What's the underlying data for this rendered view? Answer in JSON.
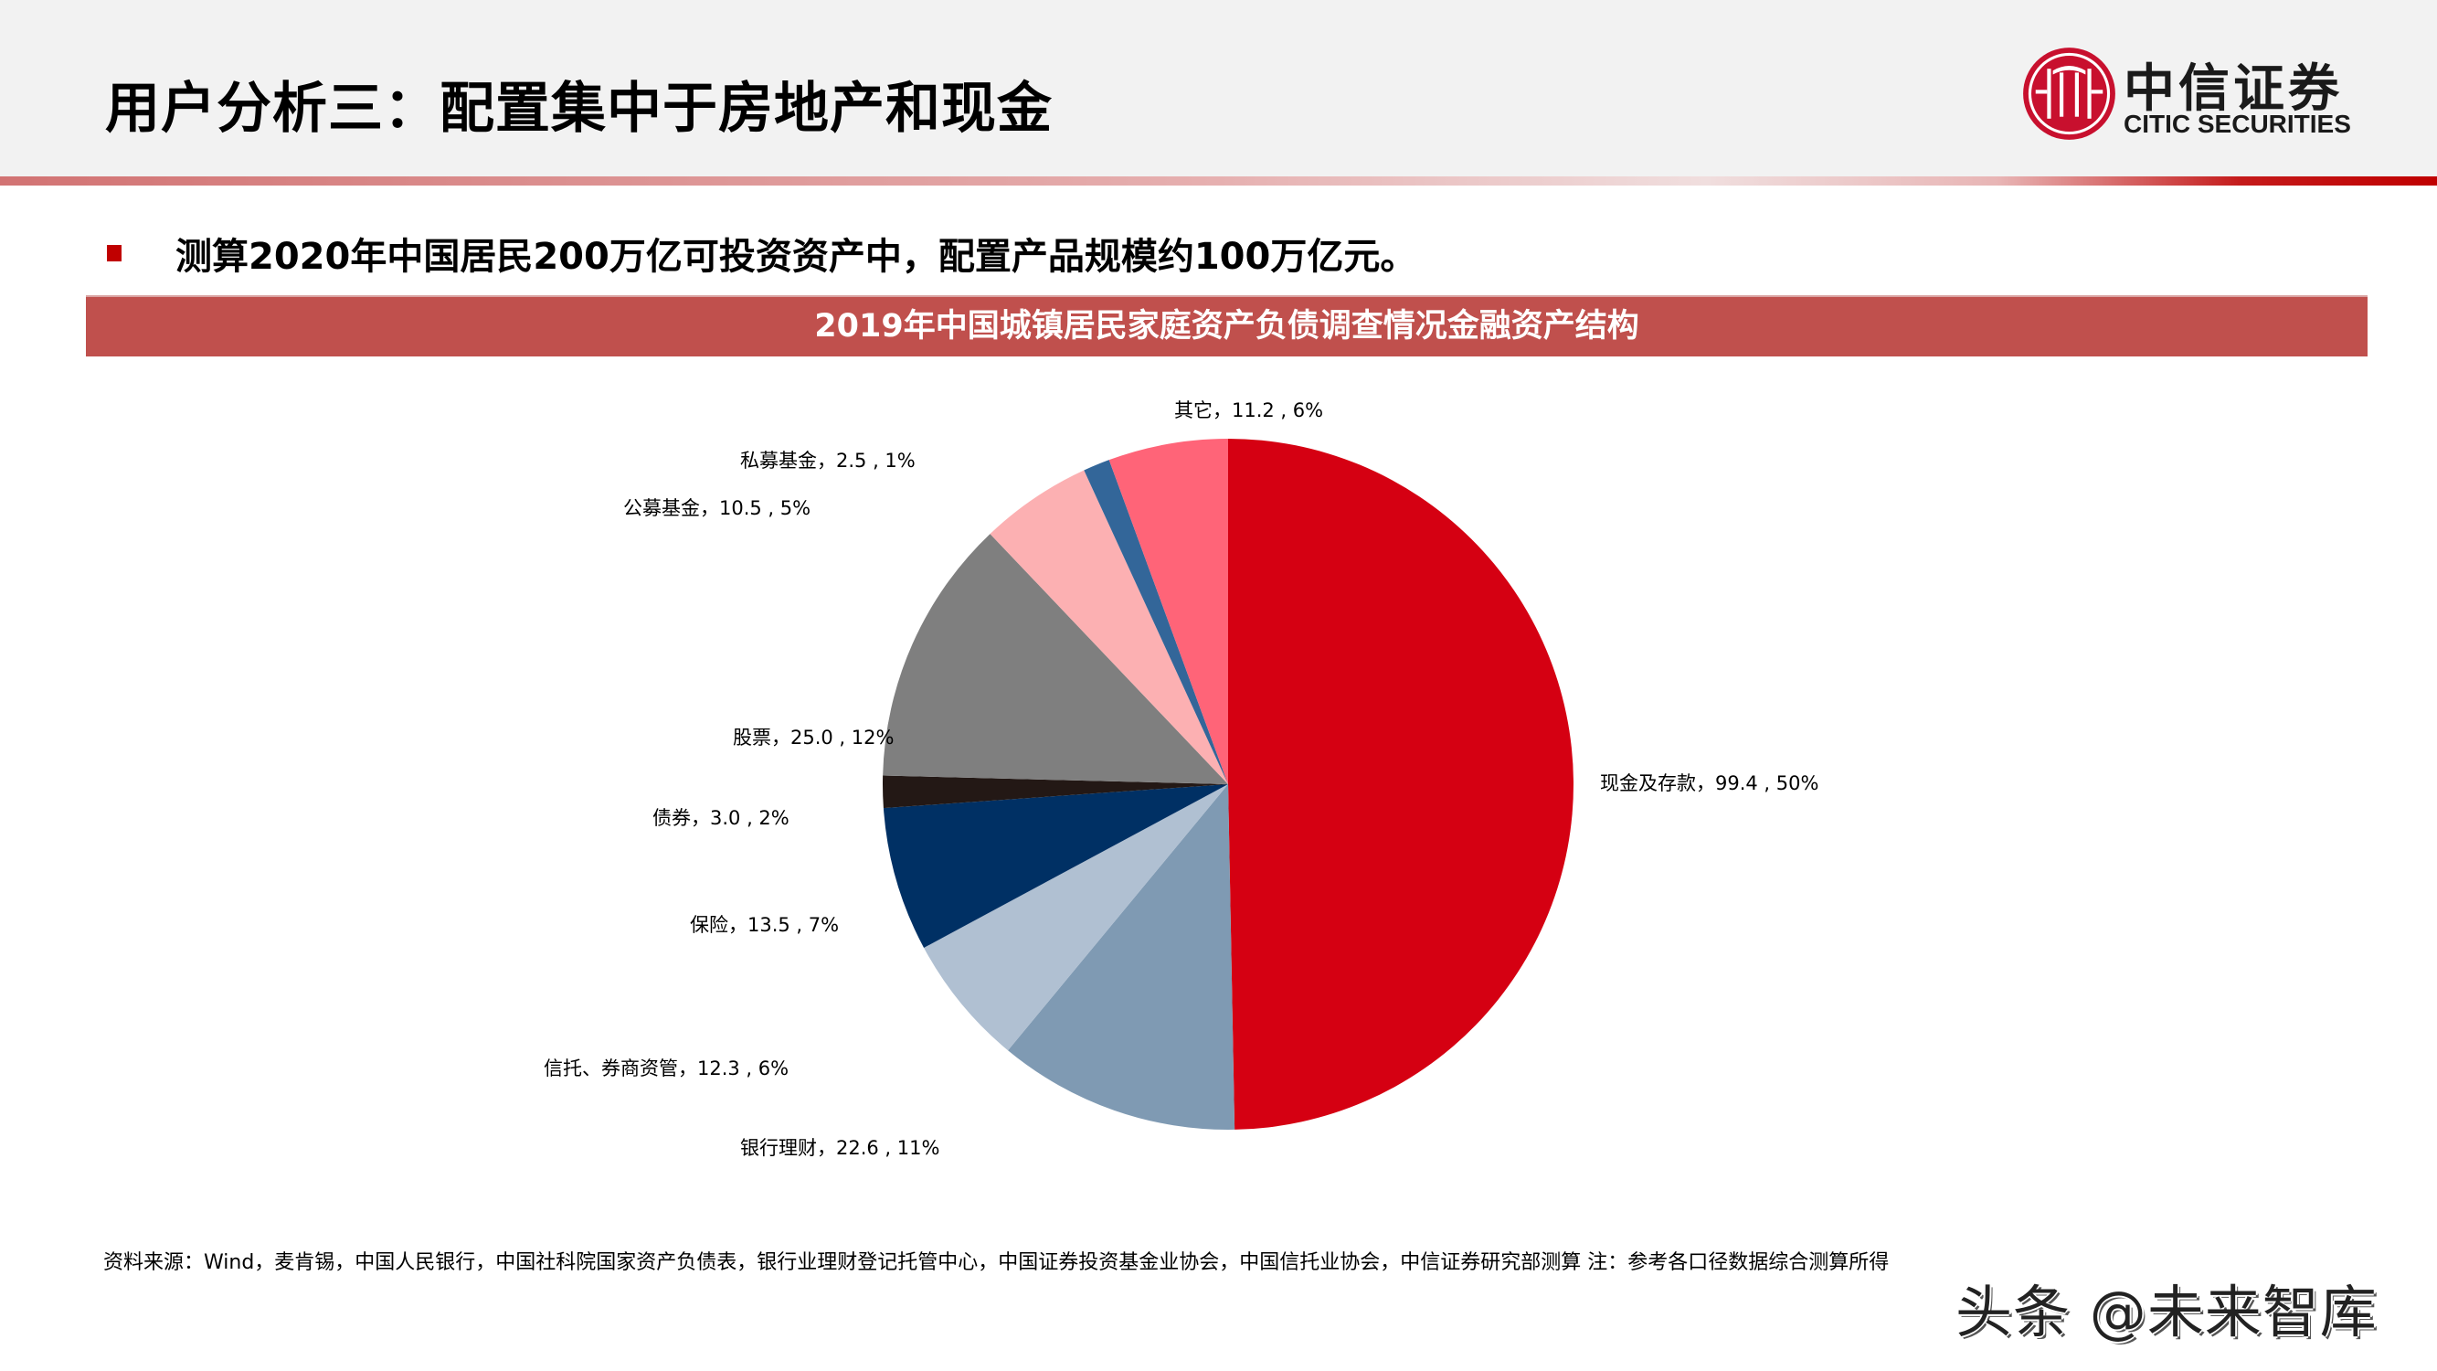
{
  "header": {
    "title": "用户分析三：配置集中于房地产和现金",
    "logo": {
      "icon": "citic-logo-icon",
      "name_cn": "中信证券",
      "name_en": "CITIC SECURITIES",
      "color": "#c8102e"
    }
  },
  "bullet": {
    "text": "测算2020年中国居民200万亿可投资资产中，配置产品规模约100万亿元。",
    "marker_color": "#c00000"
  },
  "chart_banner": {
    "title": "2019年中国城镇居民家庭资产负债调查情况金融资产结构",
    "background": "#c0504d"
  },
  "chart_data": {
    "type": "pie",
    "title": "2019年中国城镇居民家庭资产负债调查情况金融资产结构",
    "unit": "万亿元",
    "start_angle": "12 o'clock",
    "direction": "clockwise",
    "labels_format": "名称, 数值 , 占比",
    "slices": [
      {
        "name": "现金及存款",
        "value": 99.4,
        "percent": "50%",
        "color": "#d50012",
        "label": "现金及存款，99.4 , 50%"
      },
      {
        "name": "银行理财",
        "value": 22.6,
        "percent": "11%",
        "color": "#7f9ab3",
        "label": "银行理财，22.6 , 11%"
      },
      {
        "name": "信托、券商资管",
        "value": 12.3,
        "percent": "6%",
        "color": "#b0c0d2",
        "label": "信托、券商资管，12.3 , 6%"
      },
      {
        "name": "保险",
        "value": 13.5,
        "percent": "7%",
        "color": "#003064",
        "label": "保险，13.5 , 7%"
      },
      {
        "name": "债券",
        "value": 3.0,
        "percent": "2%",
        "color": "#231815",
        "label": "债券，3.0 , 2%"
      },
      {
        "name": "股票",
        "value": 25.0,
        "percent": "12%",
        "color": "#7f7f7f",
        "label": "股票，25.0 , 12%"
      },
      {
        "name": "公募基金",
        "value": 10.5,
        "percent": "5%",
        "color": "#fcb0b2",
        "label": "公募基金，10.5 , 5%"
      },
      {
        "name": "私募基金",
        "value": 2.5,
        "percent": "1%",
        "color": "#336699",
        "label": "私募基金，2.5 , 1%"
      },
      {
        "name": "其它",
        "value": 11.2,
        "percent": "6%",
        "color": "#ff6478",
        "label": "其它，11.2 , 6%"
      }
    ],
    "legend": "none (data labels outside slices)"
  },
  "footer": {
    "source": "资料来源：Wind，麦肯锡，中国人民银行，中国社科院国家资产负债表，银行业理财登记托管中心，中国证券投资基金业协会，中国信托业协会，中信证券研究部测算  注：参考各口径数据综合测算所得",
    "watermark": "头条 @未来智库"
  }
}
